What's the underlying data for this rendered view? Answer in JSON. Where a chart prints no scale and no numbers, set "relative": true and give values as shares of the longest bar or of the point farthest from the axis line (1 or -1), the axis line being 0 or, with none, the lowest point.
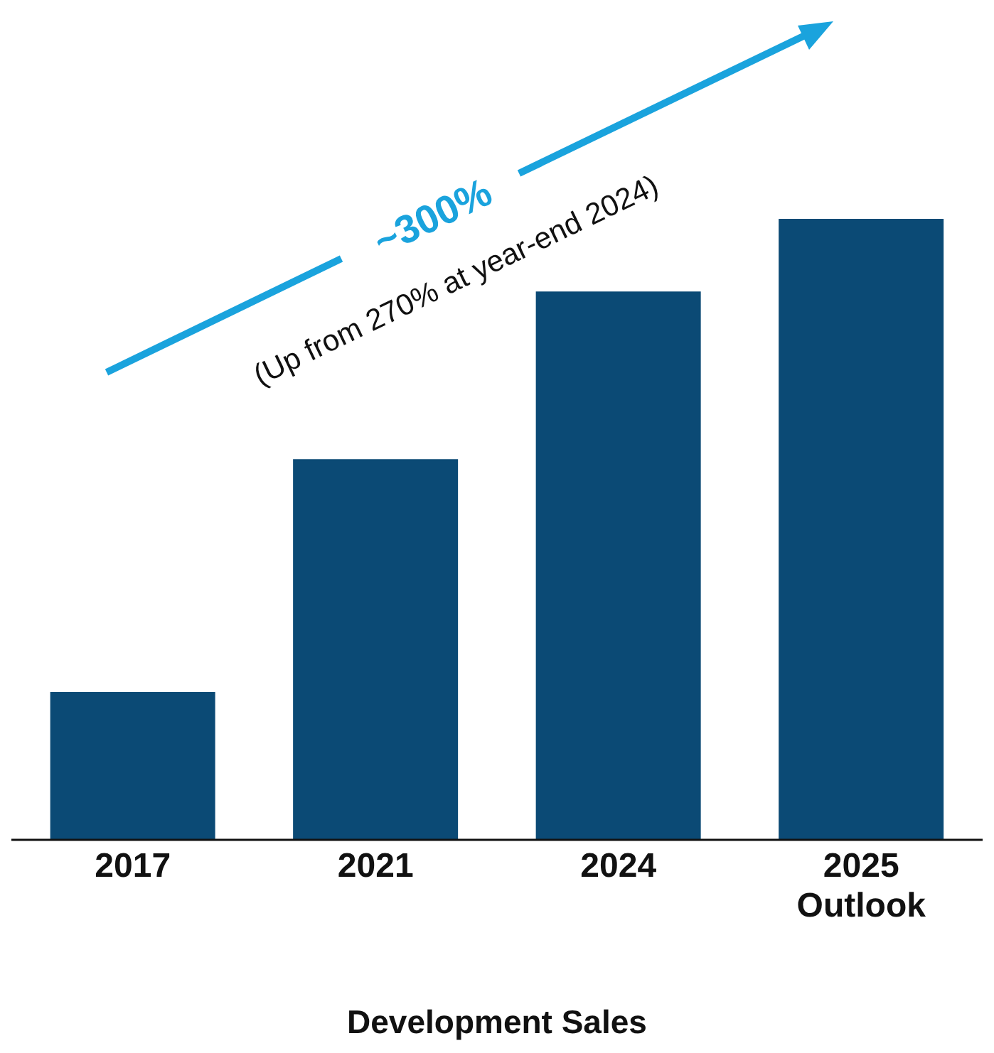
{
  "chart_data": {
    "type": "bar",
    "relative": true,
    "xlabel": "Development Sales",
    "categories": [
      "2017",
      "2021",
      "2024",
      "2025 Outlook"
    ],
    "values": [
      0.238,
      0.613,
      0.883,
      1
    ],
    "color": "#0b4a75",
    "annotations": [
      "~300%",
      "(Up from 270% at year-end 2024)"
    ],
    "grid": false,
    "legend": false
  }
}
